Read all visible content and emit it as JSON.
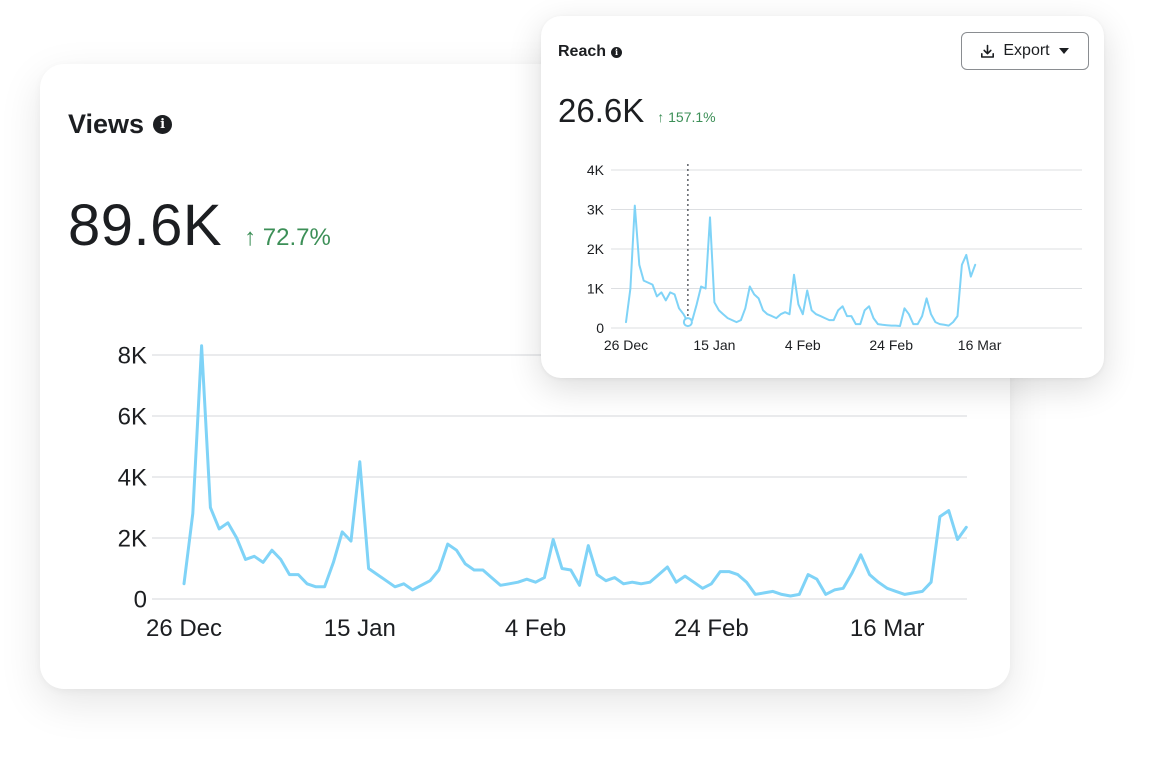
{
  "views": {
    "title": "Views",
    "value": "89.6K",
    "change": "72.7%",
    "chart_data": {
      "type": "line",
      "title": "",
      "xlabel": "",
      "ylabel": "",
      "ylim": [
        0,
        8000
      ],
      "yticks": [
        0,
        2000,
        4000,
        6000,
        8000
      ],
      "ytick_labels": [
        "0",
        "2K",
        "4K",
        "6K",
        "8K"
      ],
      "x_tick_labels": [
        "26 Dec",
        "15 Jan",
        "4 Feb",
        "24 Feb",
        "16 Mar"
      ],
      "x_tick_days": [
        0,
        20,
        40,
        60,
        80
      ],
      "grid": true,
      "legend": "none",
      "line_color": "#7fd3f7",
      "series": [
        {
          "values": [
            500,
            2800,
            8300,
            3000,
            2300,
            2500,
            2000,
            1300,
            1400,
            1200,
            1600,
            1300,
            800,
            800,
            500,
            400,
            400,
            1200,
            2200,
            1900,
            4500,
            1000,
            800,
            600,
            400,
            500,
            300,
            450,
            600,
            950,
            1800,
            1600,
            1150,
            950,
            950,
            700,
            450,
            500,
            550,
            650,
            550,
            700,
            1950,
            1000,
            950,
            450,
            1750,
            800,
            600,
            700,
            500,
            550,
            500,
            550,
            800,
            1050,
            550,
            750,
            550,
            350,
            500,
            900,
            900,
            800,
            550,
            150,
            200,
            250,
            150,
            100,
            150,
            800,
            650,
            150,
            300,
            350,
            850,
            1450,
            800,
            550,
            350,
            250,
            150,
            200,
            250,
            550,
            2700,
            2900,
            1950,
            2350
          ]
        }
      ]
    }
  },
  "reach": {
    "title": "Reach",
    "value": "26.6K",
    "change": "157.1%",
    "export_label": "Export",
    "chart_data": {
      "type": "line",
      "title": "",
      "xlabel": "",
      "ylabel": "",
      "ylim": [
        0,
        4000
      ],
      "yticks": [
        0,
        1000,
        2000,
        3000,
        4000
      ],
      "ytick_labels": [
        "0",
        "1K",
        "2K",
        "3K",
        "4K"
      ],
      "x_tick_labels": [
        "26 Dec",
        "15 Jan",
        "4 Feb",
        "24 Feb",
        "16 Mar"
      ],
      "x_tick_days": [
        0,
        20,
        40,
        60,
        80
      ],
      "grid": true,
      "legend": "none",
      "line_color": "#7fd3f7",
      "highlight_index": 14,
      "series": [
        {
          "values": [
            150,
            1000,
            3100,
            1600,
            1200,
            1150,
            1100,
            800,
            900,
            700,
            900,
            850,
            500,
            350,
            150,
            200,
            600,
            1050,
            1000,
            2800,
            650,
            450,
            350,
            250,
            200,
            150,
            200,
            500,
            1050,
            850,
            750,
            450,
            350,
            300,
            250,
            350,
            400,
            350,
            1350,
            600,
            350,
            950,
            450,
            350,
            300,
            250,
            200,
            200,
            450,
            550,
            300,
            300,
            100,
            100,
            450,
            550,
            250,
            100,
            80,
            70,
            60,
            60,
            50,
            500,
            350,
            100,
            100,
            300,
            750,
            350,
            150,
            100,
            80,
            60,
            150,
            300,
            1600,
            1850,
            1300,
            1600
          ]
        }
      ]
    }
  }
}
